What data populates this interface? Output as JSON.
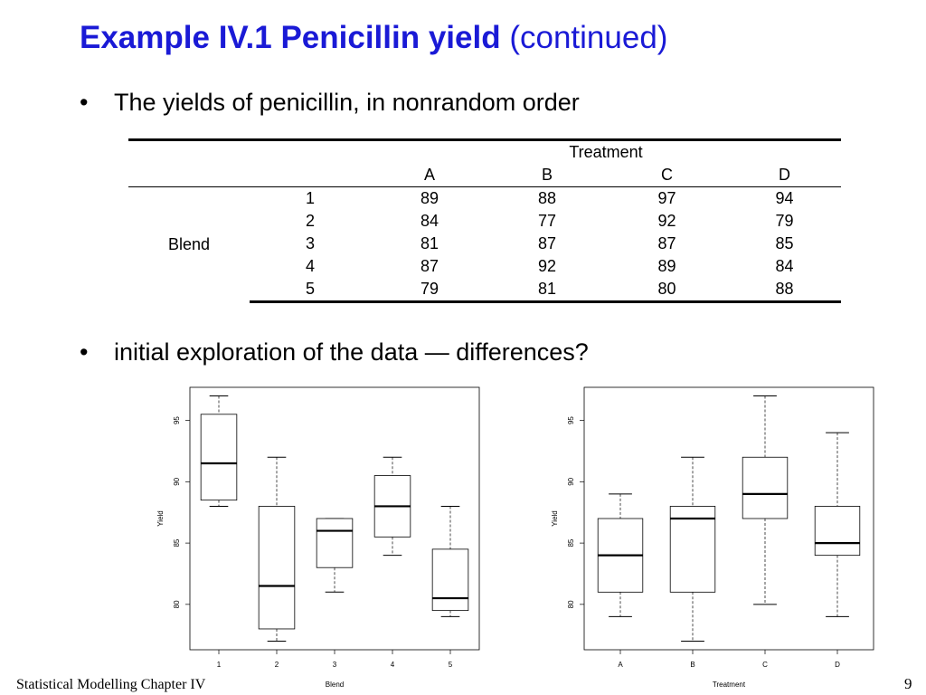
{
  "slide": {
    "title_bold": "Example IV.1 Penicillin yield",
    "title_rest": "(continued)",
    "bullet1": "The yields of penicillin, in nonrandom order",
    "bullet2": "initial exploration of the data — differences?",
    "bullet_symbol": "•",
    "footer_left": "Statistical Modelling   Chapter IV",
    "page_number": "9"
  },
  "table": {
    "treatment_header": "Treatment",
    "treatments": [
      "A",
      "B",
      "C",
      "D"
    ],
    "row_factor": "Blend",
    "rows": [
      {
        "blend": "1",
        "values": [
          "89",
          "88",
          "97",
          "94"
        ]
      },
      {
        "blend": "2",
        "values": [
          "84",
          "77",
          "92",
          "79"
        ]
      },
      {
        "blend": "3",
        "values": [
          "81",
          "87",
          "87",
          "85"
        ]
      },
      {
        "blend": "4",
        "values": [
          "87",
          "92",
          "89",
          "84"
        ]
      },
      {
        "blend": "5",
        "values": [
          "79",
          "81",
          "80",
          "88"
        ]
      }
    ]
  },
  "chart_data": [
    {
      "type": "box",
      "xlabel": "Blend",
      "ylabel": "Yield",
      "categories": [
        "1",
        "2",
        "3",
        "4",
        "5"
      ],
      "yticks": [
        80,
        85,
        90,
        95
      ],
      "ylim": [
        76.3,
        97.7
      ],
      "boxes": [
        {
          "min": 88,
          "q1": 88.5,
          "median": 91.5,
          "q3": 95.5,
          "max": 97
        },
        {
          "min": 77,
          "q1": 78,
          "median": 81.5,
          "q3": 88,
          "max": 92
        },
        {
          "min": 81,
          "q1": 83,
          "median": 86,
          "q3": 87,
          "max": 87
        },
        {
          "min": 84,
          "q1": 85.5,
          "median": 88,
          "q3": 90.5,
          "max": 92
        },
        {
          "min": 79,
          "q1": 79.5,
          "median": 80.5,
          "q3": 84.5,
          "max": 88
        }
      ]
    },
    {
      "type": "box",
      "xlabel": "Treatment",
      "ylabel": "Yield",
      "categories": [
        "A",
        "B",
        "C",
        "D"
      ],
      "yticks": [
        80,
        85,
        90,
        95
      ],
      "ylim": [
        76.3,
        97.7
      ],
      "boxes": [
        {
          "min": 79,
          "q1": 81,
          "median": 84,
          "q3": 87,
          "max": 89
        },
        {
          "min": 77,
          "q1": 81,
          "median": 87,
          "q3": 88,
          "max": 92
        },
        {
          "min": 80,
          "q1": 87,
          "median": 89,
          "q3": 92,
          "max": 97
        },
        {
          "min": 79,
          "q1": 84,
          "median": 85,
          "q3": 88,
          "max": 94
        }
      ]
    }
  ]
}
